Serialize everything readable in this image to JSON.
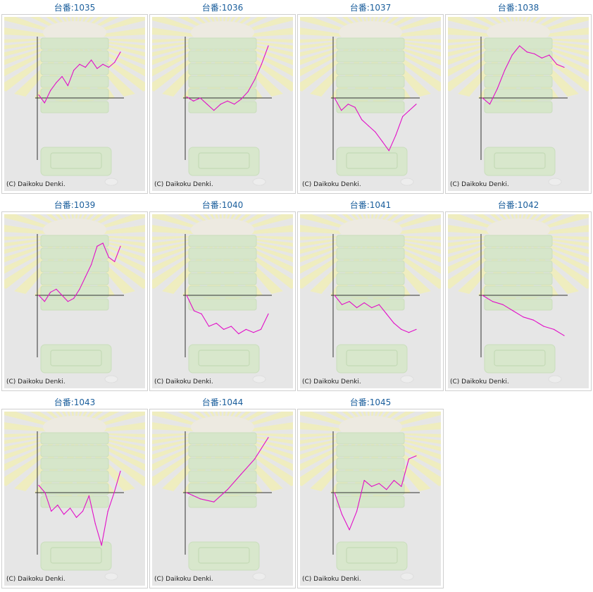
{
  "colors": {
    "line": "#e20fc8",
    "title": "#1a5e9c",
    "axis": "#333333",
    "panel_bg": "#e6e6e6"
  },
  "icons": {
    "background": "slot-machine-sunburst-watermark"
  },
  "chart_data": [
    {
      "type": "line",
      "title": "台番:1035",
      "copyright": "(C) Daikoku Denki.",
      "ylim": [
        -1,
        1
      ],
      "series": [
        {
          "values": [
            0.05,
            -0.08,
            0.12,
            0.25,
            0.35,
            0.2,
            0.45,
            0.55,
            0.5,
            0.62,
            0.48,
            0.55,
            0.5,
            0.58,
            0.75
          ]
        }
      ]
    },
    {
      "type": "line",
      "title": "台番:1036",
      "copyright": "(C) Daikoku Denki.",
      "ylim": [
        -1,
        1
      ],
      "series": [
        {
          "values": [
            0.02,
            -0.05,
            0.0,
            -0.1,
            -0.2,
            -0.1,
            -0.05,
            -0.1,
            -0.02,
            0.1,
            0.3,
            0.55,
            0.85
          ]
        }
      ]
    },
    {
      "type": "line",
      "title": "台番:1037",
      "copyright": "(C) Daikoku Denki.",
      "ylim": [
        -1,
        1
      ],
      "series": [
        {
          "values": [
            0.0,
            -0.2,
            -0.1,
            -0.15,
            -0.35,
            -0.45,
            -0.55,
            -0.7,
            -0.85,
            -0.6,
            -0.3,
            -0.2,
            -0.1
          ]
        }
      ]
    },
    {
      "type": "line",
      "title": "台番:1038",
      "copyright": "(C) Daikoku Denki.",
      "ylim": [
        -1,
        1
      ],
      "series": [
        {
          "values": [
            0.0,
            -0.1,
            0.15,
            0.45,
            0.7,
            0.85,
            0.75,
            0.72,
            0.65,
            0.7,
            0.55,
            0.5
          ]
        }
      ]
    },
    {
      "type": "line",
      "title": "台番:1039",
      "copyright": "(C) Daikoku Denki.",
      "ylim": [
        -1,
        1
      ],
      "series": [
        {
          "values": [
            0.0,
            -0.1,
            0.05,
            0.1,
            0.0,
            -0.1,
            -0.05,
            0.1,
            0.3,
            0.5,
            0.8,
            0.85,
            0.62,
            0.55,
            0.8
          ]
        }
      ]
    },
    {
      "type": "line",
      "title": "台番:1040",
      "copyright": "(C) Daikoku Denki.",
      "ylim": [
        -1,
        1
      ],
      "series": [
        {
          "values": [
            0.0,
            -0.25,
            -0.3,
            -0.5,
            -0.45,
            -0.55,
            -0.5,
            -0.62,
            -0.55,
            -0.6,
            -0.55,
            -0.3
          ]
        }
      ]
    },
    {
      "type": "line",
      "title": "台番:1041",
      "copyright": "(C) Daikoku Denki.",
      "ylim": [
        -1,
        1
      ],
      "series": [
        {
          "values": [
            0.0,
            -0.15,
            -0.1,
            -0.2,
            -0.12,
            -0.2,
            -0.15,
            -0.3,
            -0.45,
            -0.55,
            -0.6,
            -0.55
          ]
        }
      ]
    },
    {
      "type": "line",
      "title": "台番:1042",
      "copyright": "(C) Daikoku Denki.",
      "ylim": [
        -1,
        1
      ],
      "series": [
        {
          "values": [
            0.0,
            -0.1,
            -0.15,
            -0.25,
            -0.35,
            -0.4,
            -0.5,
            -0.55,
            -0.65
          ]
        }
      ]
    },
    {
      "type": "line",
      "title": "台番:1043",
      "copyright": "(C) Daikoku Denki.",
      "ylim": [
        -1,
        1
      ],
      "series": [
        {
          "values": [
            0.12,
            0.0,
            -0.3,
            -0.2,
            -0.35,
            -0.25,
            -0.4,
            -0.3,
            -0.05,
            -0.5,
            -0.85,
            -0.3,
            0.0,
            0.35
          ]
        }
      ]
    },
    {
      "type": "line",
      "title": "台番:1044",
      "copyright": "(C) Daikoku Denki.",
      "ylim": [
        -1,
        1
      ],
      "series": [
        {
          "values": [
            0.0,
            -0.1,
            -0.15,
            0.05,
            0.3,
            0.55,
            0.9
          ]
        }
      ]
    },
    {
      "type": "line",
      "title": "台番:1045",
      "copyright": "(C) Daikoku Denki.",
      "ylim": [
        -1,
        1
      ],
      "series": [
        {
          "values": [
            0.0,
            -0.35,
            -0.6,
            -0.3,
            0.2,
            0.1,
            0.15,
            0.05,
            0.2,
            0.1,
            0.55,
            0.6
          ]
        }
      ]
    }
  ]
}
